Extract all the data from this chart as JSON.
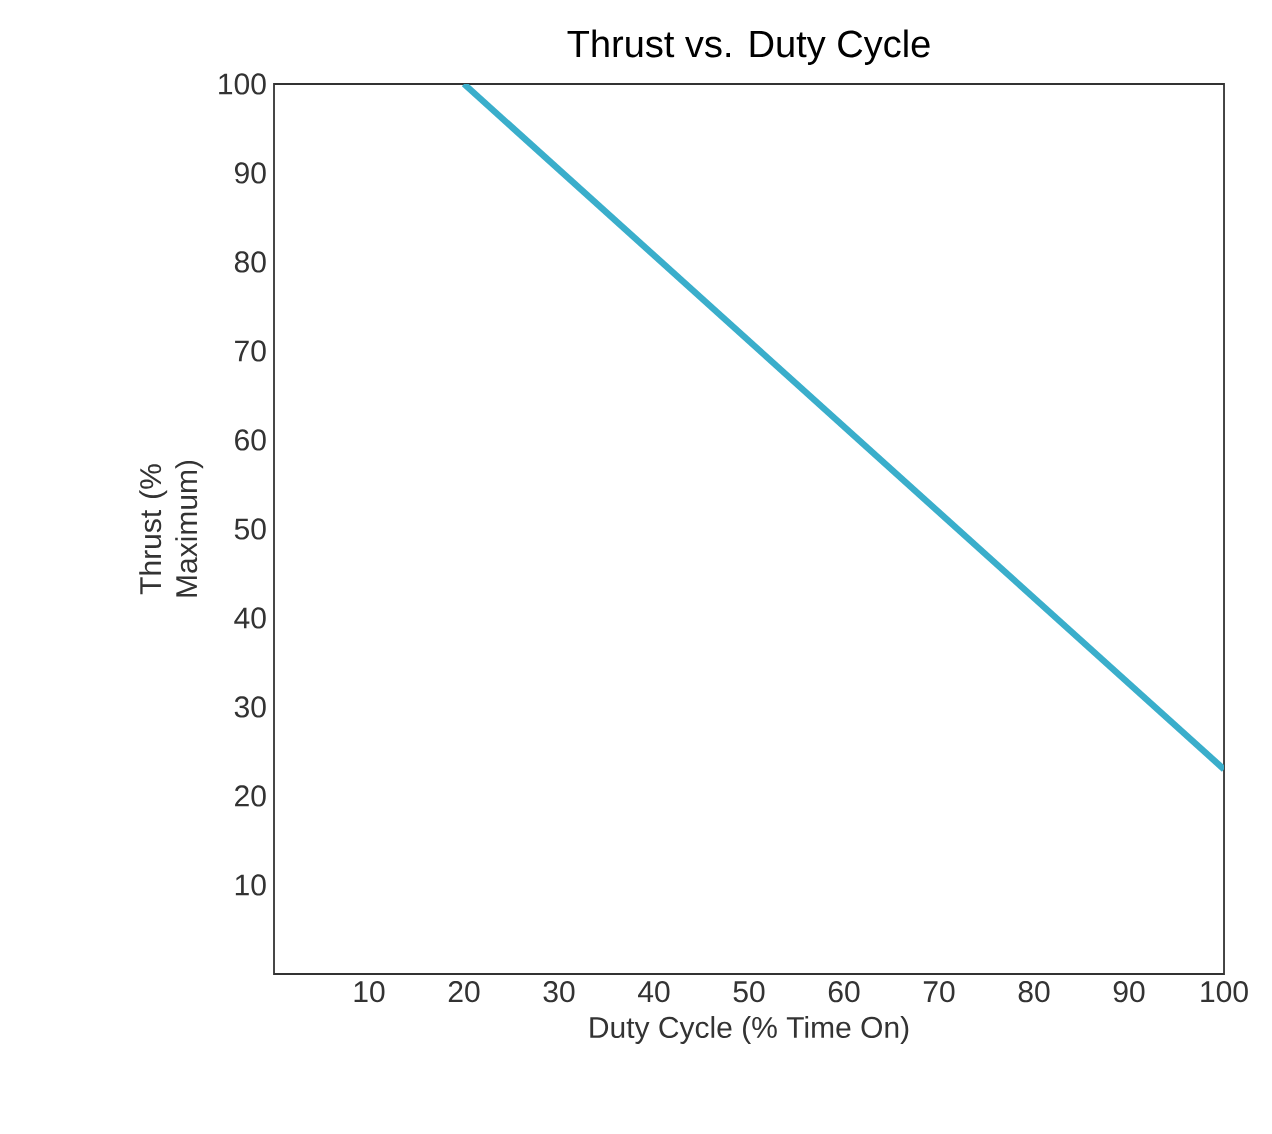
{
  "chart_data": {
    "type": "line",
    "title": "Thrust vs. Duty Cycle",
    "xlabel": "Duty Cycle (% Time On)",
    "ylabel": "Thrust (% Maximum)",
    "x": [
      20,
      100
    ],
    "series": [
      {
        "color": "#3aaecb",
        "values": [
          100,
          23
        ]
      }
    ],
    "xlim": [
      0,
      100
    ],
    "ylim": [
      0,
      100
    ],
    "xticks": [
      10,
      20,
      30,
      40,
      50,
      60,
      70,
      80,
      90,
      100
    ],
    "yticks": [
      10,
      20,
      30,
      40,
      50,
      60,
      70,
      80,
      90,
      100
    ],
    "grid": false,
    "marker": "none",
    "line_style": "solid"
  }
}
